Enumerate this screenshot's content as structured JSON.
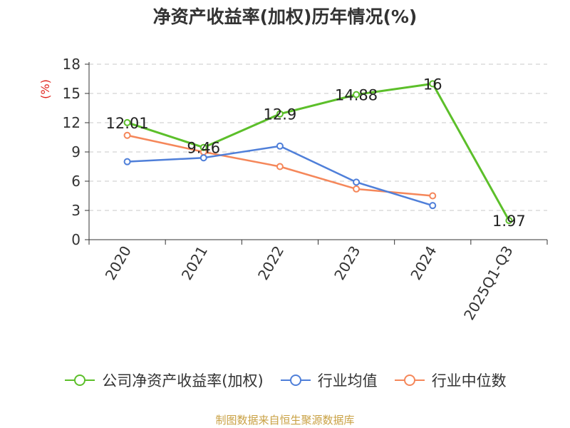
{
  "chart_data": {
    "type": "line",
    "title": "净资产收益率(加权)历年情况(%)",
    "ylabel": "(%)",
    "xlabel": "",
    "categories": [
      "2020",
      "2021",
      "2022",
      "2023",
      "2024",
      "2025Q1-Q3"
    ],
    "ylim": [
      0,
      18
    ],
    "yticks": [
      0,
      3,
      6,
      9,
      12,
      15,
      18
    ],
    "grid": true,
    "legend_position": "bottom",
    "series": [
      {
        "name": "公司净资产收益率(加权)",
        "color": "#5cbf2a",
        "values": [
          12.01,
          9.46,
          12.9,
          14.88,
          16,
          1.97
        ],
        "labels": [
          "12.01",
          "9.46",
          "12.9",
          "14.88",
          "16",
          "1.97"
        ]
      },
      {
        "name": "行业均值",
        "color": "#4f7fd9",
        "values": [
          8.0,
          8.4,
          9.6,
          5.9,
          3.5,
          null
        ]
      },
      {
        "name": "行业中位数",
        "color": "#f5875a",
        "values": [
          10.7,
          9.0,
          7.5,
          5.2,
          4.5,
          null
        ]
      }
    ]
  },
  "source": "制图数据来自恒生聚源数据库"
}
